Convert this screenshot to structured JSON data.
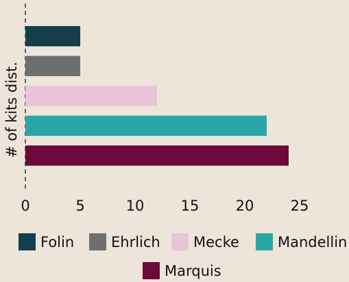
{
  "chart_data": {
    "type": "barh",
    "ylabel": "# of kits dist.",
    "categories": [
      "Folin",
      "Ehrlich",
      "Mecke",
      "Mandellin",
      "Marquis"
    ],
    "values": [
      5,
      5,
      12,
      22,
      24
    ],
    "colors": [
      "#143f4a",
      "#6e6e6e",
      "#e8c4d8",
      "#2aa6a6",
      "#6b0a3a"
    ],
    "xlim": [
      0,
      25
    ],
    "xticks": [
      0,
      5,
      10,
      15,
      20,
      25
    ],
    "grid": false,
    "legend": "bottom"
  }
}
